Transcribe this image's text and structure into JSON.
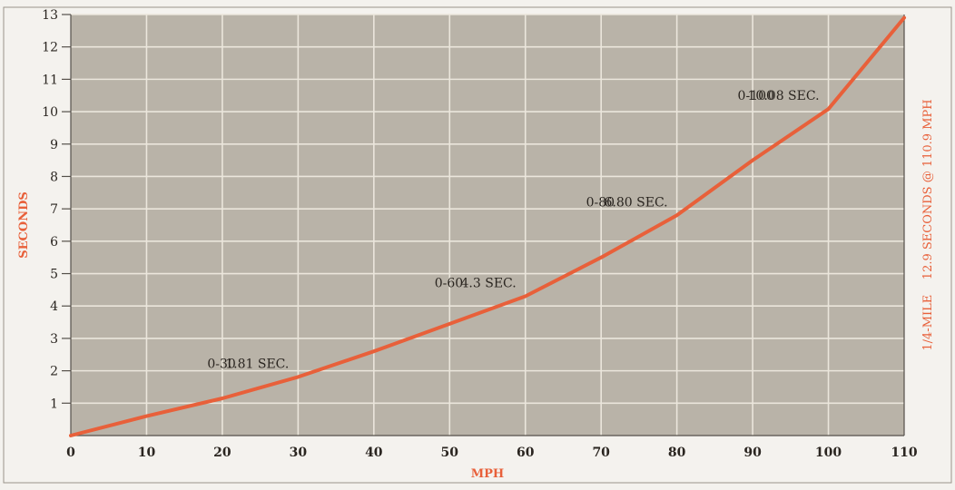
{
  "chart_data": {
    "type": "line",
    "xlabel": "MPH",
    "ylabel": "SECONDS",
    "right_label": "1/4-MILE    12.9 SECONDS @ 110.9 MPH",
    "xlim": [
      0,
      110
    ],
    "ylim": [
      0,
      13
    ],
    "x_ticks": [
      "0",
      "10",
      "20",
      "30",
      "40",
      "50",
      "60",
      "70",
      "80",
      "90",
      "100",
      "110"
    ],
    "y_ticks": [
      "1",
      "2",
      "3",
      "4",
      "5",
      "6",
      "7",
      "8",
      "9",
      "10",
      "11",
      "12",
      "13"
    ],
    "grid": true,
    "series": [
      {
        "x": [
          0,
          10,
          20,
          30,
          40,
          50,
          60,
          70,
          80,
          90,
          100,
          110
        ],
        "y": [
          0,
          0.6,
          1.15,
          1.81,
          2.6,
          3.45,
          4.3,
          5.5,
          6.8,
          8.5,
          10.08,
          12.9
        ]
      }
    ],
    "annotations": [
      {
        "range": "0-30",
        "time": "1.81 SEC.",
        "x": 30,
        "y": 1.81
      },
      {
        "range": "0-60",
        "time": "4.3 SEC.",
        "x": 60,
        "y": 4.3
      },
      {
        "range": "0-80",
        "time": "6.80 SEC.",
        "x": 80,
        "y": 6.8
      },
      {
        "range": "0-100",
        "time": "10.08 SEC.",
        "x": 100,
        "y": 10.08
      }
    ],
    "colors": {
      "line": "#e8603a",
      "label": "#e8603a",
      "plot_bg": "#b9b3a8",
      "grid": "#ebe6dc",
      "page_bg": "#f4f2ee",
      "text": "#2a2520"
    }
  }
}
